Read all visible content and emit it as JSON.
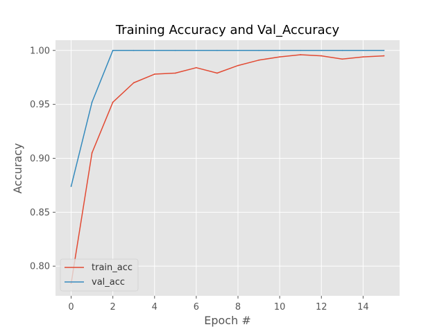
{
  "chart_data": {
    "type": "line",
    "title": "Training Accuracy and Val_Accuracy",
    "xlabel": "Epoch #",
    "ylabel": "Accuracy",
    "x": [
      0,
      1,
      2,
      3,
      4,
      5,
      6,
      7,
      8,
      9,
      10,
      11,
      12,
      13,
      14,
      15
    ],
    "xlim": [
      -0.75,
      15.75
    ],
    "ylim": [
      0.7725,
      1.0095
    ],
    "xticks": [
      0,
      2,
      4,
      6,
      8,
      10,
      12,
      14
    ],
    "xtick_labels": [
      "0",
      "2",
      "4",
      "6",
      "8",
      "10",
      "12",
      "14"
    ],
    "yticks": [
      0.8,
      0.85,
      0.9,
      0.95,
      1.0
    ],
    "ytick_labels": [
      "0.80",
      "0.85",
      "0.90",
      "0.95",
      "1.00"
    ],
    "grid": true,
    "legend_position": "lower-left",
    "style": "ggplot",
    "colors": {
      "plot_bg": "#e5e5e5",
      "grid": "#ffffff",
      "train_acc": "#e24a33",
      "val_acc": "#348abd"
    },
    "series": [
      {
        "name": "train_acc",
        "color": "#e24a33",
        "values": [
          0.784,
          0.905,
          0.952,
          0.97,
          0.978,
          0.979,
          0.984,
          0.979,
          0.986,
          0.991,
          0.994,
          0.996,
          0.995,
          0.992,
          0.994,
          0.995
        ]
      },
      {
        "name": "val_acc",
        "color": "#348abd",
        "values": [
          0.874,
          0.952,
          1.0,
          1.0,
          1.0,
          1.0,
          1.0,
          1.0,
          1.0,
          1.0,
          1.0,
          1.0,
          1.0,
          1.0,
          1.0,
          1.0
        ]
      }
    ]
  }
}
